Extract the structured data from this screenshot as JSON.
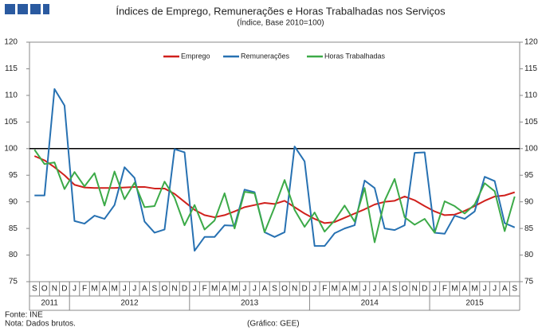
{
  "chart_data": {
    "type": "line",
    "title": "Índices de Emprego, Remunerações e Horas Trabalhadas nos Serviços",
    "subtitle": "(Índice, Base 2010=100)",
    "categories": [
      "S",
      "O",
      "N",
      "D",
      "J",
      "F",
      "M",
      "A",
      "M",
      "J",
      "J",
      "A",
      "S",
      "O",
      "N",
      "D",
      "J",
      "F",
      "M",
      "A",
      "M",
      "J",
      "J",
      "A",
      "S",
      "O",
      "N",
      "D",
      "J",
      "F",
      "M",
      "A",
      "M",
      "J",
      "J",
      "A",
      "S",
      "O",
      "N",
      "D",
      "J",
      "F",
      "M",
      "A",
      "M",
      "J",
      "J",
      "A",
      "S"
    ],
    "x_groups": [
      {
        "label": "2011",
        "count": 4
      },
      {
        "label": "2012",
        "count": 12
      },
      {
        "label": "2013",
        "count": 12
      },
      {
        "label": "2014",
        "count": 12
      },
      {
        "label": "2015",
        "count": 9
      }
    ],
    "series": [
      {
        "name": "Emprego",
        "color": "#d0201c",
        "values": [
          98.6,
          97.8,
          96.5,
          95.0,
          93.2,
          92.7,
          92.6,
          92.6,
          92.6,
          92.7,
          92.8,
          92.8,
          92.5,
          92.5,
          91.5,
          90.0,
          88.5,
          87.5,
          87.1,
          87.5,
          88.2,
          89.0,
          89.4,
          89.8,
          89.6,
          90.2,
          89.0,
          87.8,
          86.8,
          86.0,
          86.2,
          87.0,
          87.8,
          88.6,
          89.5,
          90.0,
          90.2,
          91.0,
          90.3,
          89.2,
          88.2,
          87.5,
          87.6,
          88.3,
          89.2,
          90.2,
          91.0,
          91.2,
          91.8
        ]
      },
      {
        "name": "Remunerações",
        "color": "#2771b2",
        "values": [
          91.2,
          91.2,
          111.2,
          108.1,
          86.4,
          85.9,
          87.4,
          86.8,
          89.4,
          96.5,
          94.5,
          86.3,
          84.2,
          84.8,
          99.9,
          99.3,
          80.8,
          83.4,
          83.4,
          85.6,
          85.5,
          92.3,
          91.8,
          84.3,
          83.4,
          84.3,
          100.4,
          97.6,
          81.7,
          81.7,
          84.1,
          85.0,
          85.6,
          94.0,
          92.6,
          85.0,
          84.7,
          85.6,
          99.2,
          99.3,
          84.2,
          84.0,
          87.4,
          86.8,
          88.2,
          94.7,
          93.9,
          86.0,
          85.2
        ]
      },
      {
        "name": "Horas Trabalhadas",
        "color": "#3caa48",
        "values": [
          99.8,
          97.1,
          97.4,
          92.4,
          95.6,
          92.9,
          95.4,
          89.3,
          95.7,
          90.5,
          93.6,
          89.0,
          89.2,
          93.8,
          90.8,
          85.6,
          89.4,
          84.8,
          86.5,
          91.6,
          85.0,
          91.9,
          91.6,
          84.3,
          89.0,
          94.1,
          88.5,
          85.3,
          88.0,
          84.4,
          86.5,
          89.3,
          86.3,
          92.6,
          82.4,
          90.2,
          94.3,
          87.1,
          85.7,
          86.8,
          84.2,
          90.1,
          89.2,
          87.8,
          89.5,
          93.5,
          92.0,
          84.5,
          91.0
        ]
      }
    ],
    "ylim": [
      75,
      120
    ],
    "yticks": [
      75,
      80,
      85,
      90,
      95,
      100,
      105,
      110,
      115,
      120
    ],
    "y2lim": [
      75,
      120
    ],
    "y2ticks": [
      75,
      80,
      85,
      90,
      95,
      100,
      105,
      110,
      115,
      120
    ],
    "reference_line": 100,
    "legend": "top",
    "notes": [
      "Fonte: INE",
      "Nota: Dados brutos."
    ],
    "credit": "(Gráfico: GEE)"
  }
}
